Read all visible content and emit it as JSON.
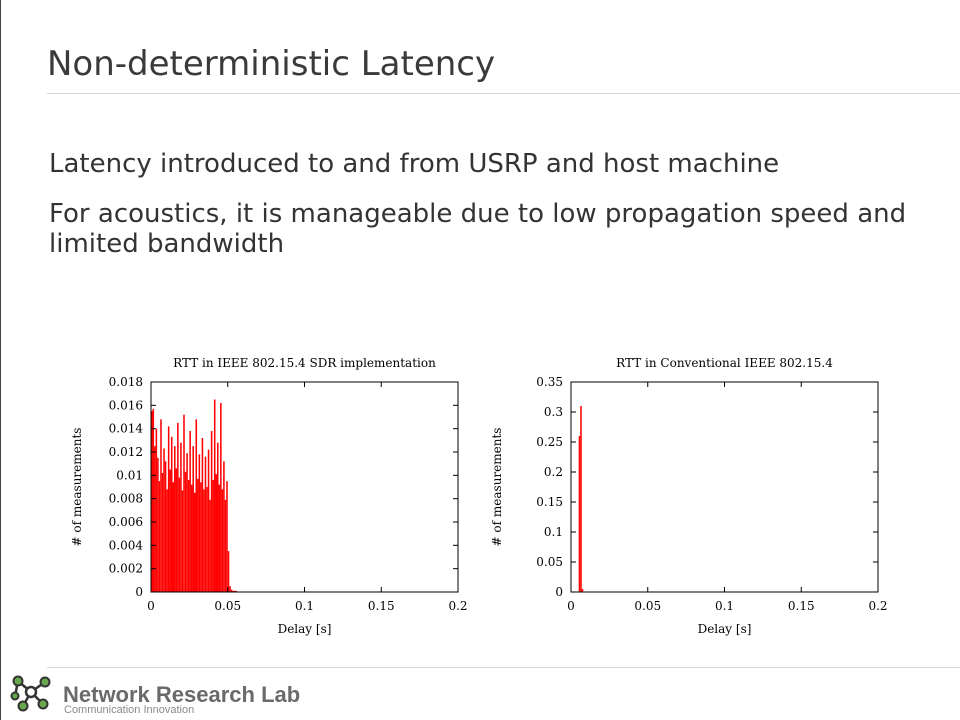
{
  "slide": {
    "title": "Non-deterministic Latency",
    "bullets": [
      "Latency introduced to and from USRP and host machine",
      "For acoustics, it is manageable due to low propagation speed and limited bandwidth"
    ]
  },
  "footer": {
    "org_name": "Network Research Lab",
    "org_tagline": "Communication Innovation",
    "logo_icon": "network-nodes-icon",
    "colors": {
      "logo_green": "#6aa84f",
      "logo_dark": "#333333"
    }
  },
  "chart_data": [
    {
      "type": "bar",
      "title": "RTT in IEEE 802.15.4 SDR implementation",
      "xlabel": "Delay [s]",
      "ylabel": "# of measurements",
      "xlim": [
        0,
        0.2
      ],
      "ylim": [
        0,
        0.018
      ],
      "xticks": [
        "0",
        "0.05",
        "0.1",
        "0.15",
        "0.2"
      ],
      "yticks": [
        "0",
        "0.002",
        "0.004",
        "0.006",
        "0.008",
        "0.01",
        "0.012",
        "0.014",
        "0.016",
        "0.018"
      ],
      "color": "#ff0000",
      "grid": false,
      "x": [
        0.0005,
        0.0015,
        0.0025,
        0.0035,
        0.0045,
        0.0055,
        0.0065,
        0.0075,
        0.0085,
        0.0095,
        0.0105,
        0.0115,
        0.0125,
        0.0135,
        0.0145,
        0.0155,
        0.0165,
        0.0175,
        0.0185,
        0.0195,
        0.0205,
        0.0215,
        0.0225,
        0.0235,
        0.0245,
        0.0255,
        0.0265,
        0.0275,
        0.0285,
        0.0295,
        0.0305,
        0.0315,
        0.0325,
        0.0335,
        0.0345,
        0.0355,
        0.0365,
        0.0375,
        0.0385,
        0.0395,
        0.0405,
        0.0415,
        0.0425,
        0.0435,
        0.0445,
        0.0455,
        0.0465,
        0.0475,
        0.0485,
        0.0495,
        0.0505,
        0.0515,
        0.0525,
        0.0535,
        0.0545,
        0.0555
      ],
      "values": [
        0.0155,
        0.0157,
        0.0125,
        0.014,
        0.0115,
        0.0095,
        0.0148,
        0.0102,
        0.0123,
        0.0112,
        0.0088,
        0.0142,
        0.0105,
        0.0133,
        0.0094,
        0.0125,
        0.0106,
        0.0145,
        0.0098,
        0.0128,
        0.0087,
        0.0152,
        0.0103,
        0.0119,
        0.0096,
        0.0138,
        0.0092,
        0.0125,
        0.0085,
        0.0148,
        0.0097,
        0.0118,
        0.0094,
        0.0132,
        0.0088,
        0.0116,
        0.009,
        0.0122,
        0.0079,
        0.0138,
        0.0096,
        0.0165,
        0.0101,
        0.0128,
        0.0092,
        0.0162,
        0.0088,
        0.0112,
        0.0079,
        0.0095,
        0.0035,
        0.0005,
        0.0002,
        0.0001,
        0.0001,
        0.0001
      ]
    },
    {
      "type": "bar",
      "title": "RTT in Conventional IEEE 802.15.4",
      "xlabel": "Delay [s]",
      "ylabel": "# of measurements",
      "xlim": [
        0,
        0.2
      ],
      "ylim": [
        0,
        0.35
      ],
      "xticks": [
        "0",
        "0.05",
        "0.1",
        "0.15",
        "0.2"
      ],
      "yticks": [
        "0",
        "0.05",
        "0.1",
        "0.15",
        "0.2",
        "0.25",
        "0.3",
        "0.35"
      ],
      "color": "#ff0000",
      "grid": false,
      "x": [
        0.0055,
        0.0065,
        0.0075
      ],
      "values": [
        0.26,
        0.31,
        0.005
      ]
    }
  ]
}
